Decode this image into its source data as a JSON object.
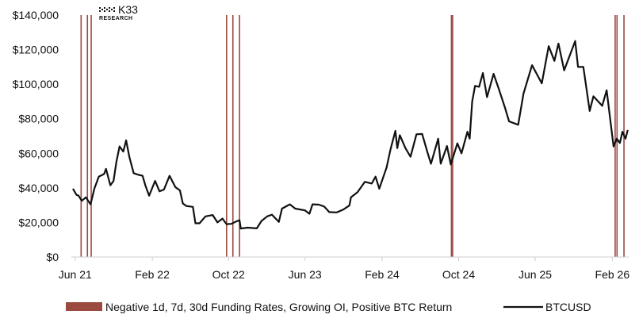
{
  "brand": {
    "name": "K33",
    "sub": "RESEARCH"
  },
  "colors": {
    "line": "#111111",
    "band": "#9b4a3f",
    "axis": "#cfcfcf"
  },
  "chart_data": {
    "type": "line",
    "title": "",
    "xlabel": "",
    "ylabel": "",
    "ylim": [
      0,
      140000
    ],
    "y_ticks": [
      {
        "value": 0,
        "label": "$0"
      },
      {
        "value": 20000,
        "label": "$20,000"
      },
      {
        "value": 40000,
        "label": "$40,000"
      },
      {
        "value": 60000,
        "label": "$60,000"
      },
      {
        "value": 80000,
        "label": "$80,000"
      },
      {
        "value": 100000,
        "label": "$100,000"
      },
      {
        "value": 120000,
        "label": "$120,000"
      },
      {
        "value": 140000,
        "label": "$140,000"
      }
    ],
    "xlim": [
      "2021-05-20",
      "2026-03-25"
    ],
    "x_ticks": [
      {
        "value": "2021-06-01",
        "label": "Jun 21"
      },
      {
        "value": "2022-02-01",
        "label": "Feb 22"
      },
      {
        "value": "2022-10-01",
        "label": "Oct 22"
      },
      {
        "value": "2023-06-01",
        "label": "Jun 23"
      },
      {
        "value": "2024-02-01",
        "label": "Feb 24"
      },
      {
        "value": "2024-10-01",
        "label": "Oct 24"
      },
      {
        "value": "2025-06-01",
        "label": "Jun 25"
      },
      {
        "value": "2026-02-01",
        "label": "Feb 26"
      }
    ],
    "legend": {
      "placement": "bottom"
    },
    "series": [
      {
        "name": "BTCUSD",
        "points": [
          [
            "2021-05-25",
            39500
          ],
          [
            "2021-06-05",
            36000
          ],
          [
            "2021-06-12",
            35500
          ],
          [
            "2021-06-22",
            32500
          ],
          [
            "2021-07-05",
            34500
          ],
          [
            "2021-07-20",
            30500
          ],
          [
            "2021-08-01",
            39500
          ],
          [
            "2021-08-15",
            46500
          ],
          [
            "2021-09-01",
            48000
          ],
          [
            "2021-09-07",
            51000
          ],
          [
            "2021-09-21",
            41500
          ],
          [
            "2021-10-01",
            44000
          ],
          [
            "2021-10-10",
            55000
          ],
          [
            "2021-10-20",
            64000
          ],
          [
            "2021-11-01",
            61000
          ],
          [
            "2021-11-10",
            67500
          ],
          [
            "2021-11-20",
            58000
          ],
          [
            "2021-12-04",
            48500
          ],
          [
            "2021-12-20",
            47500
          ],
          [
            "2022-01-01",
            47000
          ],
          [
            "2022-01-10",
            41500
          ],
          [
            "2022-01-22",
            35500
          ],
          [
            "2022-02-10",
            44000
          ],
          [
            "2022-02-24",
            38000
          ],
          [
            "2022-03-10",
            39000
          ],
          [
            "2022-03-28",
            47000
          ],
          [
            "2022-04-15",
            40500
          ],
          [
            "2022-04-30",
            38500
          ],
          [
            "2022-05-09",
            31000
          ],
          [
            "2022-05-20",
            29500
          ],
          [
            "2022-06-10",
            29000
          ],
          [
            "2022-06-18",
            19500
          ],
          [
            "2022-07-01",
            19500
          ],
          [
            "2022-07-20",
            23500
          ],
          [
            "2022-08-12",
            24300
          ],
          [
            "2022-08-27",
            20000
          ],
          [
            "2022-09-12",
            22200
          ],
          [
            "2022-09-25",
            19000
          ],
          [
            "2022-10-10",
            19200
          ],
          [
            "2022-10-25",
            20500
          ],
          [
            "2022-11-05",
            21300
          ],
          [
            "2022-11-09",
            16500
          ],
          [
            "2022-12-01",
            17000
          ],
          [
            "2022-12-30",
            16550
          ],
          [
            "2023-01-14",
            20900
          ],
          [
            "2023-02-01",
            23500
          ],
          [
            "2023-02-16",
            24500
          ],
          [
            "2023-03-10",
            20300
          ],
          [
            "2023-03-20",
            28000
          ],
          [
            "2023-04-14",
            30500
          ],
          [
            "2023-05-01",
            28000
          ],
          [
            "2023-06-01",
            27000
          ],
          [
            "2023-06-15",
            25000
          ],
          [
            "2023-06-25",
            30500
          ],
          [
            "2023-07-15",
            30300
          ],
          [
            "2023-08-01",
            29200
          ],
          [
            "2023-08-17",
            26000
          ],
          [
            "2023-09-10",
            25800
          ],
          [
            "2023-10-01",
            27500
          ],
          [
            "2023-10-20",
            29800
          ],
          [
            "2023-10-25",
            34500
          ],
          [
            "2023-11-15",
            37500
          ],
          [
            "2023-12-08",
            43500
          ],
          [
            "2023-12-30",
            42500
          ],
          [
            "2024-01-11",
            46500
          ],
          [
            "2024-01-23",
            39500
          ],
          [
            "2024-02-15",
            51800
          ],
          [
            "2024-02-28",
            62500
          ],
          [
            "2024-03-14",
            73000
          ],
          [
            "2024-03-20",
            63000
          ],
          [
            "2024-03-28",
            70500
          ],
          [
            "2024-04-15",
            63000
          ],
          [
            "2024-05-01",
            58000
          ],
          [
            "2024-05-20",
            71000
          ],
          [
            "2024-06-07",
            71200
          ],
          [
            "2024-06-24",
            60500
          ],
          [
            "2024-07-05",
            54000
          ],
          [
            "2024-07-28",
            68500
          ],
          [
            "2024-08-05",
            54000
          ],
          [
            "2024-08-25",
            64200
          ],
          [
            "2024-09-06",
            53500
          ],
          [
            "2024-09-27",
            65800
          ],
          [
            "2024-10-10",
            60000
          ],
          [
            "2024-10-29",
            72500
          ],
          [
            "2024-11-05",
            68500
          ],
          [
            "2024-11-13",
            90000
          ],
          [
            "2024-11-22",
            99000
          ],
          [
            "2024-12-05",
            98500
          ],
          [
            "2024-12-17",
            106500
          ],
          [
            "2024-12-30",
            92500
          ],
          [
            "2025-01-20",
            106000
          ],
          [
            "2025-02-05",
            97500
          ],
          [
            "2025-02-25",
            86500
          ],
          [
            "2025-03-10",
            78500
          ],
          [
            "2025-04-08",
            76500
          ],
          [
            "2025-04-25",
            94500
          ],
          [
            "2025-05-22",
            111000
          ],
          [
            "2025-06-22",
            100500
          ],
          [
            "2025-07-14",
            122000
          ],
          [
            "2025-08-01",
            113500
          ],
          [
            "2025-08-14",
            123500
          ],
          [
            "2025-09-01",
            108000
          ],
          [
            "2025-10-06",
            125000
          ],
          [
            "2025-10-15",
            110000
          ],
          [
            "2025-11-01",
            110000
          ],
          [
            "2025-11-21",
            84500
          ],
          [
            "2025-12-03",
            93000
          ],
          [
            "2025-12-31",
            87500
          ],
          [
            "2026-01-14",
            96500
          ],
          [
            "2026-02-05",
            64000
          ],
          [
            "2026-02-15",
            68500
          ],
          [
            "2026-02-25",
            66000
          ],
          [
            "2026-03-05",
            72500
          ],
          [
            "2026-03-15",
            68500
          ],
          [
            "2026-03-22",
            73500
          ]
        ]
      }
    ],
    "bands": {
      "name": "Negative 1d, 7d, 30d Funding Rates, Growing OI, Positive BTC Return",
      "dates": [
        "2021-06-20",
        "2021-07-10",
        "2021-07-22",
        "2022-09-25",
        "2022-10-15",
        "2022-11-05",
        "2024-09-08",
        "2024-09-12",
        "2026-02-10",
        "2026-02-16",
        "2026-03-10"
      ]
    }
  }
}
